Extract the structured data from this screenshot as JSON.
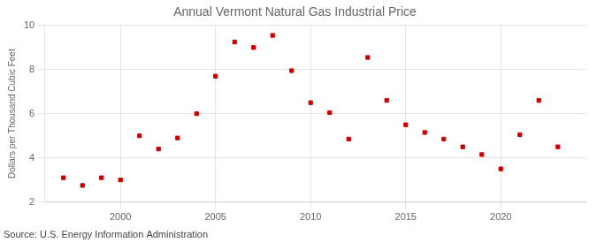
{
  "chart_data": {
    "type": "scatter",
    "title": "Annual Vermont Natural Gas Industrial Price",
    "ylabel": "Dollars per Thousand Cubic Feet",
    "annotation": "Source: U.S. Energy Information Administration",
    "x": [
      1997,
      1998,
      1999,
      2000,
      2001,
      2002,
      2003,
      2004,
      2005,
      2006,
      2007,
      2008,
      2009,
      2010,
      2011,
      2012,
      2013,
      2014,
      2015,
      2016,
      2017,
      2018,
      2019,
      2020,
      2021,
      2022,
      2023
    ],
    "values": [
      3.1,
      2.75,
      3.1,
      3.0,
      5.0,
      4.4,
      4.9,
      6.0,
      7.7,
      9.25,
      9.0,
      9.55,
      7.95,
      6.5,
      6.05,
      4.85,
      8.55,
      6.6,
      5.5,
      5.15,
      4.85,
      4.5,
      4.15,
      3.5,
      5.05,
      6.6,
      4.5
    ],
    "color": "#cc0000",
    "marker": "square",
    "xlim": [
      1996.0,
      2024.5
    ],
    "xticks": [
      2000,
      2005,
      2010,
      2015,
      2020
    ],
    "ylim": [
      2,
      10
    ],
    "yticks": [
      2,
      4,
      6,
      8,
      10
    ],
    "grid": true
  }
}
